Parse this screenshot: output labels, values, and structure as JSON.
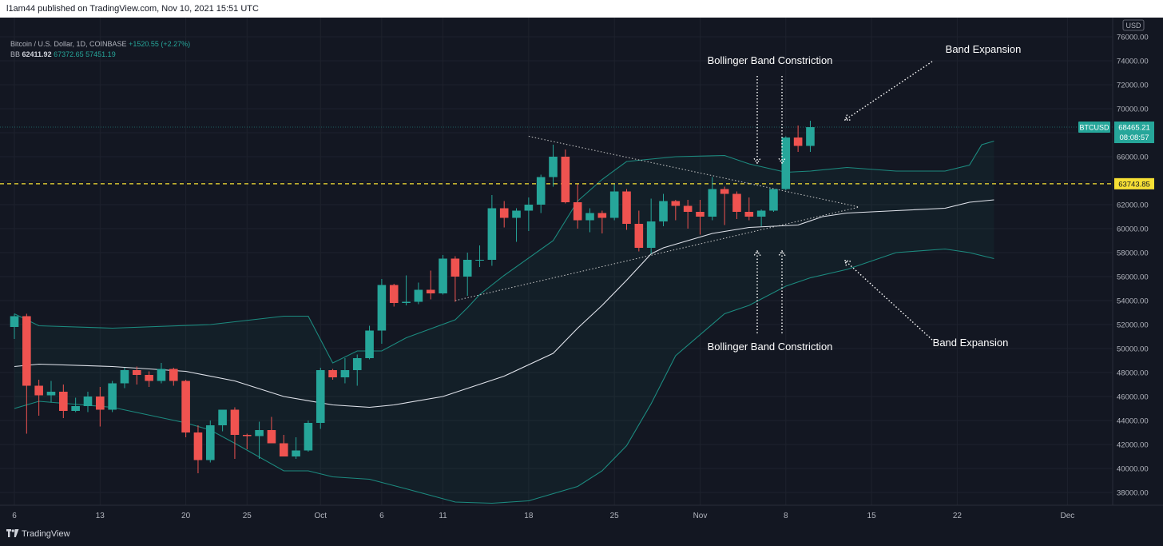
{
  "header": {
    "publish_line": "l1am44 published on TradingView.com, Nov 10, 2021 15:51 UTC"
  },
  "legend": {
    "symbol_line": "Bitcoin / U.S. Dollar, 1D, COINBASE",
    "change": "+1520.55 (+2.27%)",
    "bb_label": "BB",
    "bb_basis": "62411.92",
    "bb_upper": "67372.65",
    "bb_lower": "57451.19"
  },
  "footer": {
    "logo_text": "TradingView"
  },
  "colors": {
    "background": "#131722",
    "up": "#26a69a",
    "down": "#ef5350",
    "band": "#1c8a7f",
    "basis": "#e0e3eb",
    "dashed_level": "#f7e035",
    "annotation": "#ffffff"
  },
  "chart_data": {
    "type": "candlestick",
    "currency": "USD",
    "ylim": [
      37000,
      77000
    ],
    "y_ticks": [
      38000,
      40000,
      42000,
      44000,
      46000,
      48000,
      50000,
      52000,
      54000,
      56000,
      58000,
      60000,
      62000,
      64000,
      66000,
      68000,
      70000,
      72000,
      74000,
      76000
    ],
    "x_tick_labels": [
      {
        "label": "6",
        "date": "2021-09-06"
      },
      {
        "label": "13",
        "date": "2021-09-13"
      },
      {
        "label": "20",
        "date": "2021-09-20"
      },
      {
        "label": "25",
        "date": "2021-09-25"
      },
      {
        "label": "Oct",
        "date": "2021-10-01"
      },
      {
        "label": "6",
        "date": "2021-10-06"
      },
      {
        "label": "11",
        "date": "2021-10-11"
      },
      {
        "label": "18",
        "date": "2021-10-18"
      },
      {
        "label": "25",
        "date": "2021-10-25"
      },
      {
        "label": "Nov",
        "date": "2021-11-01"
      },
      {
        "label": "8",
        "date": "2021-11-08"
      },
      {
        "label": "15",
        "date": "2021-11-15"
      },
      {
        "label": "22",
        "date": "2021-11-22"
      },
      {
        "label": "Dec",
        "date": "2021-12-01"
      }
    ],
    "candles": [
      {
        "date": "2021-09-06",
        "o": 51800,
        "h": 52900,
        "l": 50800,
        "c": 52700
      },
      {
        "date": "2021-09-07",
        "o": 52700,
        "h": 52900,
        "l": 42900,
        "c": 46900
      },
      {
        "date": "2021-09-08",
        "o": 46900,
        "h": 47400,
        "l": 44400,
        "c": 46100
      },
      {
        "date": "2021-09-09",
        "o": 46100,
        "h": 47300,
        "l": 45500,
        "c": 46400
      },
      {
        "date": "2021-09-10",
        "o": 46400,
        "h": 47000,
        "l": 44200,
        "c": 44800
      },
      {
        "date": "2021-09-11",
        "o": 44800,
        "h": 45900,
        "l": 44700,
        "c": 45200
      },
      {
        "date": "2021-09-12",
        "o": 45200,
        "h": 46400,
        "l": 44700,
        "c": 46000
      },
      {
        "date": "2021-09-13",
        "o": 46000,
        "h": 46800,
        "l": 43500,
        "c": 44900
      },
      {
        "date": "2021-09-14",
        "o": 44900,
        "h": 47300,
        "l": 44700,
        "c": 47100
      },
      {
        "date": "2021-09-15",
        "o": 47100,
        "h": 48400,
        "l": 46700,
        "c": 48200
      },
      {
        "date": "2021-09-16",
        "o": 48200,
        "h": 48500,
        "l": 47000,
        "c": 47800
      },
      {
        "date": "2021-09-17",
        "o": 47800,
        "h": 48100,
        "l": 46800,
        "c": 47300
      },
      {
        "date": "2021-09-18",
        "o": 47300,
        "h": 48800,
        "l": 47100,
        "c": 48300
      },
      {
        "date": "2021-09-19",
        "o": 48300,
        "h": 48400,
        "l": 46900,
        "c": 47300
      },
      {
        "date": "2021-09-20",
        "o": 47300,
        "h": 47400,
        "l": 42600,
        "c": 43000
      },
      {
        "date": "2021-09-21",
        "o": 43000,
        "h": 43600,
        "l": 39600,
        "c": 40700
      },
      {
        "date": "2021-09-22",
        "o": 40700,
        "h": 44000,
        "l": 40500,
        "c": 43600
      },
      {
        "date": "2021-09-23",
        "o": 43600,
        "h": 44900,
        "l": 43100,
        "c": 44900
      },
      {
        "date": "2021-09-24",
        "o": 44900,
        "h": 45100,
        "l": 40800,
        "c": 42800
      },
      {
        "date": "2021-09-25",
        "o": 42800,
        "h": 42900,
        "l": 41600,
        "c": 42700
      },
      {
        "date": "2021-09-26",
        "o": 42700,
        "h": 43900,
        "l": 40800,
        "c": 43200
      },
      {
        "date": "2021-09-27",
        "o": 43200,
        "h": 44300,
        "l": 42100,
        "c": 42100
      },
      {
        "date": "2021-09-28",
        "o": 42100,
        "h": 42800,
        "l": 41000,
        "c": 41000
      },
      {
        "date": "2021-09-29",
        "o": 41000,
        "h": 42600,
        "l": 40800,
        "c": 41500
      },
      {
        "date": "2021-09-30",
        "o": 41500,
        "h": 44000,
        "l": 41400,
        "c": 43800
      },
      {
        "date": "2021-10-01",
        "o": 43800,
        "h": 48400,
        "l": 43300,
        "c": 48200
      },
      {
        "date": "2021-10-02",
        "o": 48200,
        "h": 48300,
        "l": 47400,
        "c": 47600
      },
      {
        "date": "2021-10-03",
        "o": 47600,
        "h": 49200,
        "l": 47100,
        "c": 48200
      },
      {
        "date": "2021-10-04",
        "o": 48200,
        "h": 49500,
        "l": 46900,
        "c": 49200
      },
      {
        "date": "2021-10-05",
        "o": 49200,
        "h": 51900,
        "l": 49100,
        "c": 51500
      },
      {
        "date": "2021-10-06",
        "o": 51500,
        "h": 55800,
        "l": 50400,
        "c": 55300
      },
      {
        "date": "2021-10-07",
        "o": 55300,
        "h": 55400,
        "l": 53500,
        "c": 53800
      },
      {
        "date": "2021-10-08",
        "o": 53800,
        "h": 56100,
        "l": 53600,
        "c": 53900
      },
      {
        "date": "2021-10-09",
        "o": 53900,
        "h": 55500,
        "l": 53700,
        "c": 54900
      },
      {
        "date": "2021-10-10",
        "o": 54900,
        "h": 56500,
        "l": 54100,
        "c": 54600
      },
      {
        "date": "2021-10-11",
        "o": 54600,
        "h": 57800,
        "l": 54500,
        "c": 57500
      },
      {
        "date": "2021-10-12",
        "o": 57500,
        "h": 57700,
        "l": 53900,
        "c": 56000
      },
      {
        "date": "2021-10-13",
        "o": 56000,
        "h": 58000,
        "l": 54400,
        "c": 57400
      },
      {
        "date": "2021-10-14",
        "o": 57400,
        "h": 58600,
        "l": 56800,
        "c": 57400
      },
      {
        "date": "2021-10-15",
        "o": 57400,
        "h": 62800,
        "l": 56900,
        "c": 61700
      },
      {
        "date": "2021-10-16",
        "o": 61700,
        "h": 62300,
        "l": 60100,
        "c": 60900
      },
      {
        "date": "2021-10-17",
        "o": 60900,
        "h": 61700,
        "l": 58900,
        "c": 61500
      },
      {
        "date": "2021-10-18",
        "o": 61500,
        "h": 62600,
        "l": 59800,
        "c": 62000
      },
      {
        "date": "2021-10-19",
        "o": 62000,
        "h": 64500,
        "l": 61300,
        "c": 64300
      },
      {
        "date": "2021-10-20",
        "o": 64300,
        "h": 67000,
        "l": 63500,
        "c": 66000
      },
      {
        "date": "2021-10-21",
        "o": 66000,
        "h": 66600,
        "l": 62100,
        "c": 62200
      },
      {
        "date": "2021-10-22",
        "o": 62200,
        "h": 63700,
        "l": 60000,
        "c": 60700
      },
      {
        "date": "2021-10-23",
        "o": 60700,
        "h": 61700,
        "l": 59700,
        "c": 61300
      },
      {
        "date": "2021-10-24",
        "o": 61300,
        "h": 61500,
        "l": 59600,
        "c": 60900
      },
      {
        "date": "2021-10-25",
        "o": 60900,
        "h": 63700,
        "l": 60700,
        "c": 63100
      },
      {
        "date": "2021-10-26",
        "o": 63100,
        "h": 63300,
        "l": 59900,
        "c": 60400
      },
      {
        "date": "2021-10-27",
        "o": 60400,
        "h": 61500,
        "l": 58100,
        "c": 58400
      },
      {
        "date": "2021-10-28",
        "o": 58400,
        "h": 62500,
        "l": 57900,
        "c": 60600
      },
      {
        "date": "2021-10-29",
        "o": 60600,
        "h": 62900,
        "l": 60200,
        "c": 62300
      },
      {
        "date": "2021-10-30",
        "o": 62300,
        "h": 62400,
        "l": 60700,
        "c": 61900
      },
      {
        "date": "2021-10-31",
        "o": 61900,
        "h": 62400,
        "l": 60000,
        "c": 61400
      },
      {
        "date": "2021-11-01",
        "o": 61400,
        "h": 62400,
        "l": 59500,
        "c": 61000
      },
      {
        "date": "2021-11-02",
        "o": 61000,
        "h": 64300,
        "l": 60700,
        "c": 63300
      },
      {
        "date": "2021-11-03",
        "o": 63300,
        "h": 63500,
        "l": 60300,
        "c": 62900
      },
      {
        "date": "2021-11-04",
        "o": 62900,
        "h": 63100,
        "l": 60800,
        "c": 61400
      },
      {
        "date": "2021-11-05",
        "o": 61400,
        "h": 62600,
        "l": 60700,
        "c": 61000
      },
      {
        "date": "2021-11-06",
        "o": 61000,
        "h": 61600,
        "l": 60200,
        "c": 61500
      },
      {
        "date": "2021-11-07",
        "o": 61500,
        "h": 63300,
        "l": 61400,
        "c": 63300
      },
      {
        "date": "2021-11-08",
        "o": 63300,
        "h": 67700,
        "l": 63200,
        "c": 67600
      },
      {
        "date": "2021-11-09",
        "o": 67600,
        "h": 68600,
        "l": 66400,
        "c": 66900
      },
      {
        "date": "2021-11-10",
        "o": 66900,
        "h": 69000,
        "l": 66400,
        "c": 68465
      }
    ],
    "bollinger": {
      "upper": [
        [
          0,
          52900
        ],
        [
          2,
          51900
        ],
        [
          8,
          51700
        ],
        [
          16,
          52000
        ],
        [
          22,
          52700
        ],
        [
          24,
          52700
        ],
        [
          26,
          48800
        ],
        [
          28,
          49800
        ],
        [
          30,
          49800
        ],
        [
          32,
          50900
        ],
        [
          36,
          52400
        ],
        [
          37,
          53400
        ],
        [
          38,
          54500
        ],
        [
          40,
          56100
        ],
        [
          44,
          59000
        ],
        [
          46,
          62300
        ],
        [
          48,
          64100
        ],
        [
          50,
          65600
        ],
        [
          54,
          66000
        ],
        [
          58,
          66100
        ],
        [
          60,
          65400
        ],
        [
          63,
          64700
        ],
        [
          65,
          64800
        ],
        [
          68,
          65100
        ],
        [
          72,
          64800
        ],
        [
          76,
          64800
        ],
        [
          78,
          65300
        ],
        [
          79,
          67000
        ],
        [
          80,
          67300
        ]
      ],
      "basis": [
        [
          0,
          48500
        ],
        [
          2,
          48700
        ],
        [
          8,
          48500
        ],
        [
          14,
          48100
        ],
        [
          18,
          47300
        ],
        [
          22,
          46000
        ],
        [
          26,
          45300
        ],
        [
          29,
          45100
        ],
        [
          31,
          45300
        ],
        [
          35,
          46000
        ],
        [
          40,
          47700
        ],
        [
          44,
          49600
        ],
        [
          46,
          51700
        ],
        [
          48,
          53600
        ],
        [
          50,
          55700
        ],
        [
          52,
          57900
        ],
        [
          53,
          58400
        ],
        [
          55,
          59000
        ],
        [
          57,
          59600
        ],
        [
          60,
          60100
        ],
        [
          64,
          60300
        ],
        [
          66,
          61000
        ],
        [
          68,
          61300
        ],
        [
          72,
          61500
        ],
        [
          76,
          61700
        ],
        [
          78,
          62200
        ],
        [
          80,
          62400
        ]
      ],
      "lower": [
        [
          0,
          45000
        ],
        [
          2,
          45600
        ],
        [
          8,
          45100
        ],
        [
          14,
          43800
        ],
        [
          16,
          43200
        ],
        [
          18,
          42100
        ],
        [
          22,
          39800
        ],
        [
          24,
          39800
        ],
        [
          26,
          39300
        ],
        [
          29,
          39100
        ],
        [
          32,
          38300
        ],
        [
          36,
          37200
        ],
        [
          39,
          37100
        ],
        [
          42,
          37300
        ],
        [
          46,
          38500
        ],
        [
          48,
          39800
        ],
        [
          50,
          41900
        ],
        [
          52,
          45400
        ],
        [
          54,
          49400
        ],
        [
          58,
          52900
        ],
        [
          60,
          53600
        ],
        [
          63,
          55200
        ],
        [
          65,
          55900
        ],
        [
          68,
          56600
        ],
        [
          72,
          58000
        ],
        [
          76,
          58300
        ],
        [
          78,
          58000
        ],
        [
          80,
          57500
        ]
      ]
    },
    "level_lines": [
      {
        "value": 63743.85,
        "label": "63743.85",
        "style": "dashed",
        "color": "#f7e035"
      },
      {
        "value": 68465.21,
        "label": "68465.21",
        "style": "dotted",
        "color": "#26a69a"
      }
    ],
    "price_tag": {
      "symbol": "BTCUSD",
      "value": "68465.21",
      "countdown": "08:08:57"
    },
    "triangle": {
      "upper_from": {
        "date": "2021-10-18",
        "value": 67700
      },
      "lower_from": {
        "date": "2021-10-12",
        "value": 54000
      },
      "apex": {
        "date": "2021-11-14",
        "value": 61800
      }
    },
    "annotations": [
      {
        "text": "Bollinger Band Constriction",
        "position": "top"
      },
      {
        "text": "Band Expansion",
        "position": "top-right"
      },
      {
        "text": "Bollinger Band Constriction",
        "position": "bottom"
      },
      {
        "text": "Band Expansion",
        "position": "bottom-right"
      }
    ]
  }
}
